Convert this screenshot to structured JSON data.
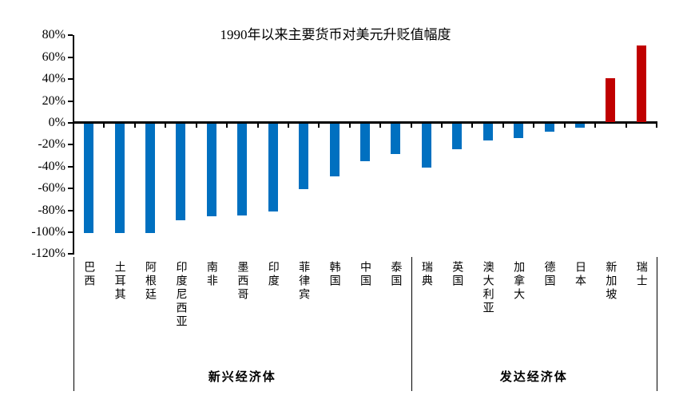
{
  "chart_data": {
    "type": "bar",
    "title": "1990年以来主要货币对美元升贬值幅度",
    "categories": [
      "巴西",
      "土耳其",
      "阿根廷",
      "印度尼西亚",
      "南非",
      "墨西哥",
      "印度",
      "菲律宾",
      "韩国",
      "中国",
      "泰国",
      "瑞典",
      "英国",
      "澳大利亚",
      "加拿大",
      "德国",
      "日本",
      "新加坡",
      "瑞士"
    ],
    "values": [
      -100,
      -100,
      -100,
      -88,
      -85,
      -84,
      -80,
      -60,
      -48,
      -34,
      -28,
      -40,
      -23,
      -15,
      -13,
      -7,
      -4,
      40,
      70
    ],
    "unit": "%",
    "ylim": [
      -120,
      80
    ],
    "ytick_step": 20,
    "ytick_labels": [
      "80%",
      "60%",
      "40%",
      "20%",
      "0%",
      "-20%",
      "-40%",
      "-60%",
      "-80%",
      "-100%",
      "-120%"
    ],
    "groups": [
      {
        "label": "新兴经济体",
        "start": 0,
        "end": 10
      },
      {
        "label": "发达经济体",
        "start": 11,
        "end": 18
      }
    ],
    "colors": {
      "negative_bar": "#0070C0",
      "positive_bar": "#C00000",
      "axis": "#000000"
    },
    "grid": false,
    "legend": false,
    "xlabel": "",
    "ylabel": ""
  }
}
